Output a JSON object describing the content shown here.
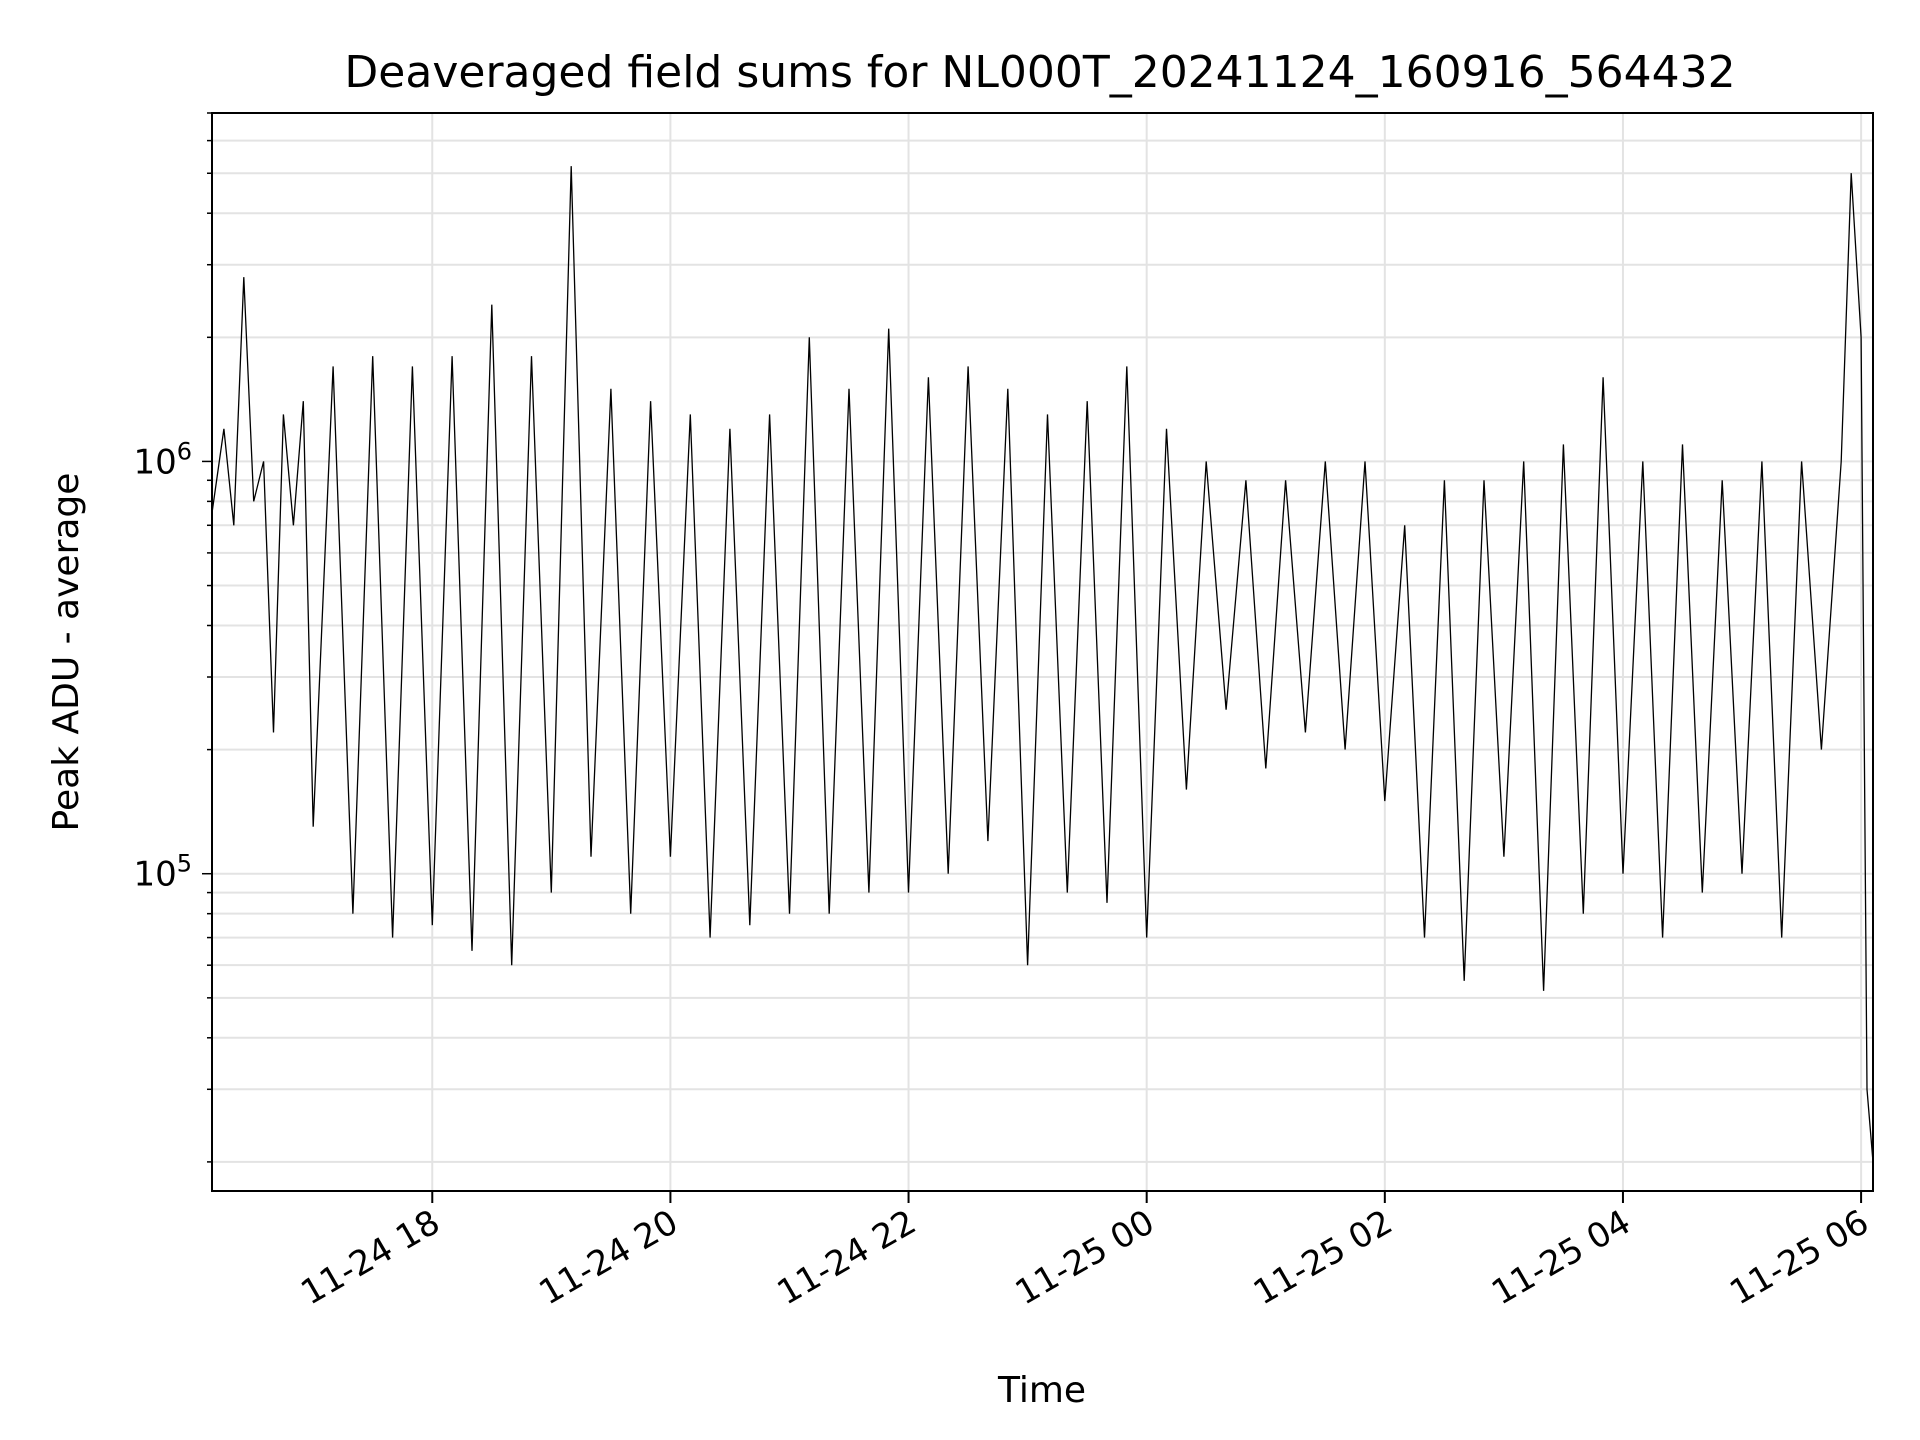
{
  "chart_data": {
    "type": "line",
    "title": "Deaveraged field sums for NL000T_20241124_160916_564432",
    "xlabel": "Time",
    "ylabel": "Peak ADU - average",
    "yscale": "log",
    "xlim": [
      "2024-11-24 16:09",
      "2024-11-25 06:06"
    ],
    "ylim": [
      17000,
      7000000
    ],
    "grid": true,
    "line_color": "#000000",
    "x_ticks": [
      {
        "t": "2024-11-24 18:00",
        "label": "11-24 18"
      },
      {
        "t": "2024-11-24 20:00",
        "label": "11-24 20"
      },
      {
        "t": "2024-11-24 22:00",
        "label": "11-24 22"
      },
      {
        "t": "2024-11-25 00:00",
        "label": "11-25 00"
      },
      {
        "t": "2024-11-25 02:00",
        "label": "11-25 02"
      },
      {
        "t": "2024-11-25 04:00",
        "label": "11-25 04"
      },
      {
        "t": "2024-11-25 06:00",
        "label": "11-25 06"
      }
    ],
    "y_ticks": [
      {
        "value": 100000,
        "base": "10",
        "exp": "5"
      },
      {
        "value": 1000000,
        "base": "10",
        "exp": "6"
      }
    ],
    "series": [
      {
        "x": [
          "2024-11-24 16:09",
          "2024-11-24 16:15",
          "2024-11-24 16:20",
          "2024-11-24 16:25",
          "2024-11-24 16:30",
          "2024-11-24 16:35",
          "2024-11-24 16:40",
          "2024-11-24 16:45",
          "2024-11-24 16:50",
          "2024-11-24 16:55",
          "2024-11-24 17:00",
          "2024-11-24 17:10",
          "2024-11-24 17:20",
          "2024-11-24 17:30",
          "2024-11-24 17:40",
          "2024-11-24 17:50",
          "2024-11-24 18:00",
          "2024-11-24 18:10",
          "2024-11-24 18:20",
          "2024-11-24 18:30",
          "2024-11-24 18:40",
          "2024-11-24 18:50",
          "2024-11-24 19:00",
          "2024-11-24 19:10",
          "2024-11-24 19:20",
          "2024-11-24 19:30",
          "2024-11-24 19:40",
          "2024-11-24 19:50",
          "2024-11-24 20:00",
          "2024-11-24 20:10",
          "2024-11-24 20:20",
          "2024-11-24 20:30",
          "2024-11-24 20:40",
          "2024-11-24 20:50",
          "2024-11-24 21:00",
          "2024-11-24 21:10",
          "2024-11-24 21:20",
          "2024-11-24 21:30",
          "2024-11-24 21:40",
          "2024-11-24 21:50",
          "2024-11-24 22:00",
          "2024-11-24 22:10",
          "2024-11-24 22:20",
          "2024-11-24 22:30",
          "2024-11-24 22:40",
          "2024-11-24 22:50",
          "2024-11-24 23:00",
          "2024-11-24 23:10",
          "2024-11-24 23:20",
          "2024-11-24 23:30",
          "2024-11-24 23:40",
          "2024-11-24 23:50",
          "2024-11-25 00:00",
          "2024-11-25 00:10",
          "2024-11-25 00:20",
          "2024-11-25 00:30",
          "2024-11-25 00:40",
          "2024-11-25 00:50",
          "2024-11-25 01:00",
          "2024-11-25 01:10",
          "2024-11-25 01:20",
          "2024-11-25 01:30",
          "2024-11-25 01:40",
          "2024-11-25 01:50",
          "2024-11-25 02:00",
          "2024-11-25 02:10",
          "2024-11-25 02:20",
          "2024-11-25 02:30",
          "2024-11-25 02:40",
          "2024-11-25 02:50",
          "2024-11-25 03:00",
          "2024-11-25 03:10",
          "2024-11-25 03:20",
          "2024-11-25 03:30",
          "2024-11-25 03:40",
          "2024-11-25 03:50",
          "2024-11-25 04:00",
          "2024-11-25 04:10",
          "2024-11-25 04:20",
          "2024-11-25 04:30",
          "2024-11-25 04:40",
          "2024-11-25 04:50",
          "2024-11-25 05:00",
          "2024-11-25 05:10",
          "2024-11-25 05:20",
          "2024-11-25 05:30",
          "2024-11-25 05:40",
          "2024-11-25 05:50",
          "2024-11-25 05:55",
          "2024-11-25 06:00",
          "2024-11-25 06:03",
          "2024-11-25 06:06"
        ],
        "y": [
          750000,
          1200000,
          700000,
          2800000,
          800000,
          1000000,
          220000,
          1300000,
          700000,
          1400000,
          130000,
          1700000,
          80000,
          1800000,
          70000,
          1700000,
          75000,
          1800000,
          65000,
          2400000,
          60000,
          1800000,
          90000,
          5200000,
          110000,
          1500000,
          80000,
          1400000,
          110000,
          1300000,
          70000,
          1200000,
          75000,
          1300000,
          80000,
          2000000,
          80000,
          1500000,
          90000,
          2100000,
          90000,
          1600000,
          100000,
          1700000,
          120000,
          1500000,
          60000,
          1300000,
          90000,
          1400000,
          85000,
          1700000,
          70000,
          1200000,
          160000,
          1000000,
          250000,
          900000,
          180000,
          900000,
          220000,
          1000000,
          200000,
          1000000,
          150000,
          700000,
          70000,
          900000,
          55000,
          900000,
          110000,
          1000000,
          52000,
          1100000,
          80000,
          1600000,
          100000,
          1000000,
          70000,
          1100000,
          90000,
          900000,
          100000,
          1000000,
          70000,
          1000000,
          200000,
          1000000,
          5000000,
          2000000,
          30000,
          20000
        ]
      }
    ]
  }
}
